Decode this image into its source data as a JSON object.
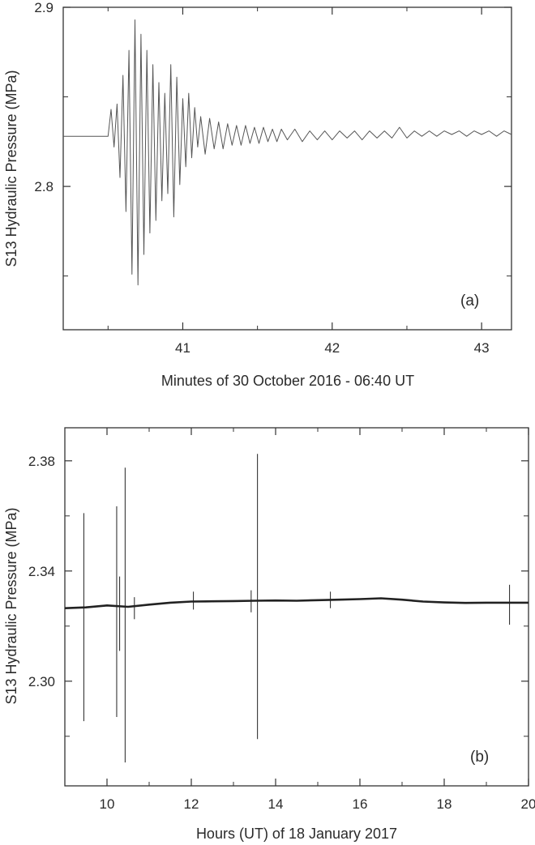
{
  "chart_data": [
    {
      "type": "line",
      "panel_label": "(a)",
      "xlabel": "Minutes of 30 October 2016 - 06:40 UT",
      "ylabel": "S13  Hydraulic Pressure (MPa)",
      "xlim": [
        40.2,
        43.2
      ],
      "ylim": [
        2.72,
        2.9
      ],
      "xticks": [
        41,
        42,
        43
      ],
      "xtick_labels": [
        "41",
        "42",
        "43"
      ],
      "yticks": [
        2.8,
        2.9
      ],
      "ytick_labels": [
        "2.8",
        "2.9"
      ],
      "grid": false,
      "line_color": "#555555",
      "series": [
        {
          "x": [
            40.2,
            40.5,
            40.52,
            40.54,
            40.56,
            40.58,
            40.6,
            40.62,
            40.64,
            40.66,
            40.68,
            40.7,
            40.72,
            40.74,
            40.76,
            40.78,
            40.8,
            40.82,
            40.84,
            40.86,
            40.88,
            40.9,
            40.92,
            40.94,
            40.96,
            40.98,
            41.0,
            41.02,
            41.04,
            41.06,
            41.08,
            41.1,
            41.12,
            41.15,
            41.18,
            41.21,
            41.24,
            41.27,
            41.3,
            41.33,
            41.36,
            41.39,
            41.42,
            41.45,
            41.48,
            41.51,
            41.54,
            41.57,
            41.6,
            41.63,
            41.66,
            41.7,
            41.75,
            41.8,
            41.85,
            41.9,
            41.95,
            42.0,
            42.05,
            42.1,
            42.15,
            42.2,
            42.25,
            42.3,
            42.35,
            42.4,
            42.45,
            42.5,
            42.55,
            42.6,
            42.65,
            42.7,
            42.75,
            42.8,
            42.85,
            42.9,
            42.95,
            43.0,
            43.05,
            43.1,
            43.15,
            43.2
          ],
          "y": [
            2.828,
            2.828,
            2.843,
            2.822,
            2.846,
            2.805,
            2.862,
            2.786,
            2.876,
            2.751,
            2.893,
            2.745,
            2.885,
            2.762,
            2.876,
            2.774,
            2.868,
            2.781,
            2.858,
            2.792,
            2.852,
            2.796,
            2.868,
            2.783,
            2.861,
            2.801,
            2.849,
            2.811,
            2.852,
            2.816,
            2.844,
            2.822,
            2.839,
            2.818,
            2.838,
            2.821,
            2.836,
            2.821,
            2.835,
            2.823,
            2.834,
            2.823,
            2.834,
            2.824,
            2.833,
            2.824,
            2.833,
            2.825,
            2.832,
            2.825,
            2.832,
            2.826,
            2.832,
            2.825,
            2.831,
            2.826,
            2.831,
            2.826,
            2.831,
            2.827,
            2.831,
            2.826,
            2.831,
            2.827,
            2.831,
            2.827,
            2.833,
            2.827,
            2.831,
            2.828,
            2.831,
            2.828,
            2.831,
            2.829,
            2.831,
            2.828,
            2.831,
            2.829,
            2.831,
            2.828,
            2.831,
            2.829
          ]
        }
      ]
    },
    {
      "type": "line",
      "panel_label": "(b)",
      "xlabel": "Hours (UT) of 18 January 2017",
      "ylabel": "S13  Hydraulic Pressure (MPa)",
      "xlim": [
        9,
        20
      ],
      "ylim": [
        2.262,
        2.392
      ],
      "xticks": [
        10,
        12,
        14,
        16,
        18,
        20
      ],
      "xtick_labels": [
        "10",
        "12",
        "14",
        "16",
        "18",
        "20"
      ],
      "yticks": [
        2.3,
        2.34,
        2.38
      ],
      "ytick_labels": [
        "2.30",
        "2.34",
        "2.38"
      ],
      "grid": false,
      "line_color": "#222222",
      "series": [
        {
          "x": [
            9.0,
            9.5,
            10.0,
            10.5,
            11.0,
            11.5,
            12.0,
            12.5,
            13.0,
            13.5,
            14.0,
            14.5,
            15.0,
            15.5,
            16.0,
            16.5,
            17.0,
            17.5,
            18.0,
            18.5,
            19.0,
            19.5,
            20.0
          ],
          "y": [
            2.3265,
            2.3268,
            2.3275,
            2.327,
            2.3278,
            2.3285,
            2.3289,
            2.329,
            2.3291,
            2.3292,
            2.3293,
            2.3292,
            2.3294,
            2.3296,
            2.3298,
            2.3301,
            2.3296,
            2.3289,
            2.3286,
            2.3284,
            2.3285,
            2.3285,
            2.3285
          ]
        }
      ],
      "spikes": [
        {
          "x": 9.45,
          "high": 2.361,
          "low": 2.2855
        },
        {
          "x": 10.23,
          "high": 2.3635,
          "low": 2.287
        },
        {
          "x": 10.3,
          "high": 2.338,
          "low": 2.311
        },
        {
          "x": 10.43,
          "high": 2.3775,
          "low": 2.2705
        },
        {
          "x": 10.65,
          "high": 2.3305,
          "low": 2.3225
        },
        {
          "x": 12.05,
          "high": 2.3325,
          "low": 2.326
        },
        {
          "x": 13.42,
          "high": 2.333,
          "low": 2.325
        },
        {
          "x": 13.57,
          "high": 2.3825,
          "low": 2.279
        },
        {
          "x": 15.3,
          "high": 2.3325,
          "low": 2.3265
        },
        {
          "x": 19.55,
          "high": 2.335,
          "low": 2.3205
        }
      ]
    }
  ]
}
